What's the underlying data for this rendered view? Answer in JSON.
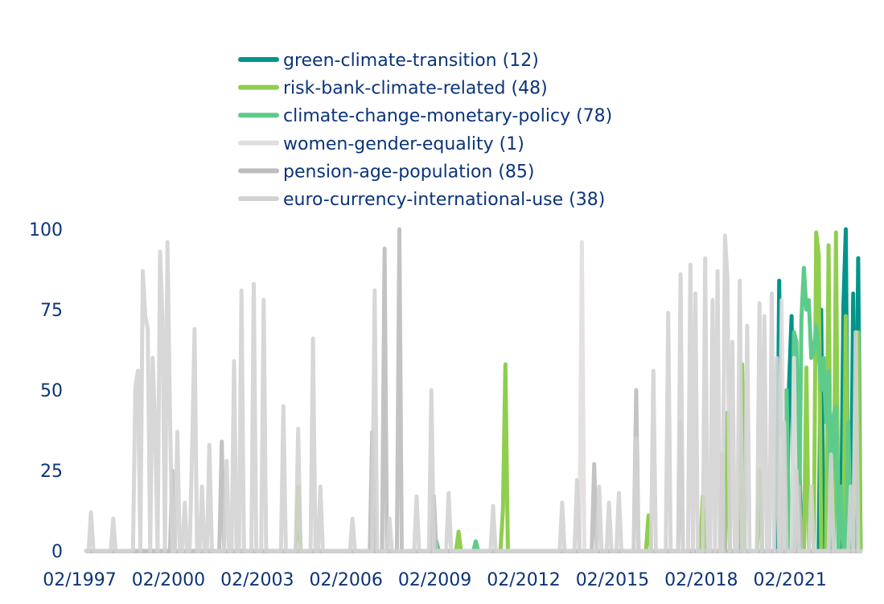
{
  "chart_data": {
    "type": "line",
    "title": "",
    "xlabel": "",
    "ylabel": "",
    "x_start": "1997-02",
    "x_end": "2023-04",
    "ylim": [
      0,
      100
    ],
    "yticks": [
      0,
      25,
      50,
      75,
      100
    ],
    "xticks": [
      "02/1997",
      "02/2000",
      "02/2003",
      "02/2006",
      "02/2009",
      "02/2012",
      "02/2015",
      "02/2018",
      "02/2021"
    ],
    "grid": false,
    "legend_placement": "top-center",
    "note_values": "monthly values; months not listed are 0",
    "series": [
      {
        "name": "green-climate-transition (12)",
        "color": "#00958a",
        "points": [
          [
            "2020-07",
            84
          ],
          [
            "2020-11",
            52
          ],
          [
            "2020-12",
            73
          ],
          [
            "2021-03",
            34
          ],
          [
            "2021-12",
            75
          ],
          [
            "2022-09",
            76
          ],
          [
            "2022-10",
            100
          ],
          [
            "2023-01",
            80
          ],
          [
            "2023-03",
            91
          ]
        ]
      },
      {
        "name": "risk-bank-climate-related (48)",
        "color": "#8fce4e",
        "points": [
          [
            "2004-04",
            20
          ],
          [
            "2009-09",
            6
          ],
          [
            "2011-03",
            13
          ],
          [
            "2011-04",
            58
          ],
          [
            "2016-02",
            11
          ],
          [
            "2017-12",
            17
          ],
          [
            "2018-10",
            43
          ],
          [
            "2019-04",
            58
          ],
          [
            "2019-11",
            25
          ],
          [
            "2021-06",
            57
          ],
          [
            "2021-10",
            99
          ],
          [
            "2021-11",
            92
          ],
          [
            "2022-03",
            95
          ],
          [
            "2022-06",
            99
          ],
          [
            "2022-10",
            73
          ],
          [
            "2023-02",
            45
          ],
          [
            "2023-03",
            68
          ]
        ]
      },
      {
        "name": "climate-change-monetary-policy (78)",
        "color": "#5ecb8a",
        "points": [
          [
            "2008-12",
            3
          ],
          [
            "2010-04",
            3
          ],
          [
            "2020-08",
            35
          ],
          [
            "2020-10",
            50
          ],
          [
            "2021-01",
            68
          ],
          [
            "2021-02",
            65
          ],
          [
            "2021-04",
            72
          ],
          [
            "2021-05",
            88
          ],
          [
            "2021-06",
            75
          ],
          [
            "2021-07",
            78
          ],
          [
            "2021-08",
            60
          ],
          [
            "2021-09",
            62
          ],
          [
            "2021-10",
            70
          ],
          [
            "2021-11",
            62
          ],
          [
            "2021-12",
            50
          ],
          [
            "2022-01",
            60
          ],
          [
            "2022-02",
            40
          ],
          [
            "2022-03",
            56
          ],
          [
            "2022-05",
            42
          ],
          [
            "2022-06",
            45
          ],
          [
            "2022-08",
            20
          ],
          [
            "2022-11",
            40
          ],
          [
            "2023-01",
            10
          ]
        ]
      },
      {
        "name": "women-gender-equality (1)",
        "color": "#e2dede",
        "points": [
          [
            "2013-11",
            96
          ],
          [
            "2020-08",
            78
          ],
          [
            "2021-01",
            60
          ]
        ]
      },
      {
        "name": "pension-age-population (85)",
        "color": "#bdbdbd",
        "points": [
          [
            "2000-01",
            25
          ],
          [
            "2001-09",
            34
          ],
          [
            "2006-10",
            37
          ],
          [
            "2007-03",
            94
          ],
          [
            "2007-09",
            100
          ],
          [
            "2008-11",
            17
          ],
          [
            "2014-04",
            27
          ],
          [
            "2015-09",
            50
          ],
          [
            "2017-03",
            40
          ],
          [
            "2018-08",
            30
          ],
          [
            "2021-03",
            20
          ]
        ]
      },
      {
        "name": "euro-currency-international-use (38)",
        "color": "#d3d3d3",
        "points": [
          [
            "1997-04",
            12
          ],
          [
            "1998-01",
            10
          ],
          [
            "1998-10",
            51
          ],
          [
            "1998-11",
            56
          ],
          [
            "1999-01",
            87
          ],
          [
            "1999-02",
            73
          ],
          [
            "1999-03",
            69
          ],
          [
            "1999-05",
            60
          ],
          [
            "1999-06",
            39
          ],
          [
            "1999-08",
            93
          ],
          [
            "1999-09",
            72
          ],
          [
            "1999-11",
            96
          ],
          [
            "1999-12",
            43
          ],
          [
            "2000-03",
            37
          ],
          [
            "2000-06",
            15
          ],
          [
            "2000-09",
            32
          ],
          [
            "2000-10",
            69
          ],
          [
            "2001-01",
            20
          ],
          [
            "2001-04",
            33
          ],
          [
            "2001-11",
            28
          ],
          [
            "2002-02",
            59
          ],
          [
            "2002-05",
            81
          ],
          [
            "2002-10",
            83
          ],
          [
            "2003-02",
            78
          ],
          [
            "2003-10",
            45
          ],
          [
            "2004-04",
            38
          ],
          [
            "2004-10",
            66
          ],
          [
            "2005-01",
            20
          ],
          [
            "2006-02",
            10
          ],
          [
            "2006-11",
            81
          ],
          [
            "2007-05",
            10
          ],
          [
            "2008-04",
            17
          ],
          [
            "2008-10",
            50
          ],
          [
            "2009-05",
            18
          ],
          [
            "2010-11",
            14
          ],
          [
            "2013-03",
            15
          ],
          [
            "2013-09",
            22
          ],
          [
            "2014-06",
            20
          ],
          [
            "2014-10",
            15
          ],
          [
            "2015-02",
            18
          ],
          [
            "2015-09",
            35
          ],
          [
            "2016-04",
            56
          ],
          [
            "2016-10",
            74
          ],
          [
            "2017-03",
            86
          ],
          [
            "2017-07",
            89
          ],
          [
            "2017-09",
            80
          ],
          [
            "2018-01",
            91
          ],
          [
            "2018-04",
            78
          ],
          [
            "2018-06",
            87
          ],
          [
            "2018-09",
            98
          ],
          [
            "2018-10",
            85
          ],
          [
            "2018-12",
            65
          ],
          [
            "2019-03",
            84
          ],
          [
            "2019-06",
            70
          ],
          [
            "2019-11",
            77
          ],
          [
            "2020-01",
            73
          ],
          [
            "2020-04",
            80
          ],
          [
            "2020-06",
            60
          ],
          [
            "2020-09",
            40
          ],
          [
            "2021-02",
            25
          ],
          [
            "2021-08",
            20
          ],
          [
            "2022-04",
            30
          ],
          [
            "2022-12",
            20
          ],
          [
            "2023-02",
            68
          ]
        ]
      }
    ]
  }
}
